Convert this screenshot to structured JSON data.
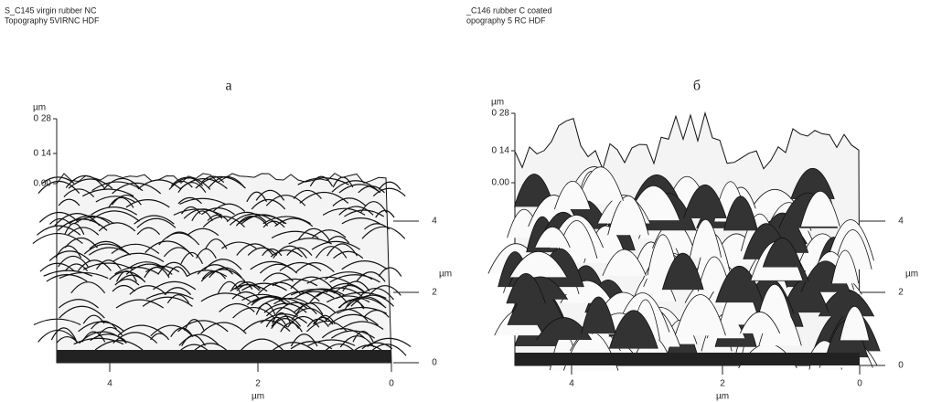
{
  "panels": [
    {
      "header": [
        "S_C145 virgin rubber NC",
        "Topography 5VIRNC HDF"
      ],
      "label": "а",
      "z_unit": "µm",
      "z_ticks": [
        "0 28",
        "0 14",
        "0.00"
      ],
      "y_unit": "µm",
      "y_ticks": [
        "4",
        "2",
        "0"
      ],
      "x_unit": "µm",
      "x_ticks": [
        "4",
        "2",
        "0"
      ]
    },
    {
      "header": [
        "_C146 rubber C coated",
        "opography 5 RC HDF"
      ],
      "label": "б",
      "z_unit": "µm",
      "z_ticks": [
        "0 28",
        "0 14",
        "0.00"
      ],
      "y_unit": "µm",
      "y_ticks": [
        "4",
        "2",
        "0"
      ],
      "x_unit": "µm",
      "x_ticks": [
        "4",
        "2",
        "0"
      ]
    }
  ]
}
